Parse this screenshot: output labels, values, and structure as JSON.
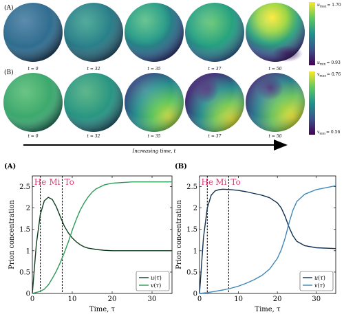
{
  "spheres": {
    "rows": [
      {
        "label": "(A)",
        "times": [
          "t = 0",
          "t = 32",
          "t = 35",
          "t = 37",
          "t = 50"
        ],
        "colorbar": {
          "max_var": "u",
          "max_sub": "max",
          "max_value": "= 1.70",
          "min_var": "u",
          "min_sub": "min",
          "min_value": "= 0.93"
        }
      },
      {
        "label": "(B)",
        "times": [
          "t = 0",
          "t = 32",
          "t = 35",
          "t = 37",
          "t = 50"
        ],
        "colorbar": {
          "max_var": "v",
          "max_sub": "max",
          "max_value": "= 0.76",
          "min_var": "v",
          "min_sub": "min",
          "min_value": "= 0.56"
        }
      }
    ],
    "time_arrow_label": "Increasing time, t"
  },
  "colormap": [
    "#440154",
    "#3b528b",
    "#21918c",
    "#5ec962",
    "#fde725"
  ],
  "chart_data": [
    {
      "type": "line",
      "panel_label": "(A)",
      "xlabel": "Time, τ",
      "ylabel": "Prion concentration",
      "xlim": [
        0,
        35
      ],
      "ylim": [
        0,
        2.75
      ],
      "xticks": [
        0,
        10,
        20,
        30
      ],
      "yticks": [
        0,
        0.5,
        1.0,
        1.5,
        2.0,
        2.5
      ],
      "ytick_labels": [
        "0",
        "0.5",
        "1",
        "1.5",
        "2",
        "2.5"
      ],
      "phase_lines": [
        {
          "label": "He",
          "x": 2
        },
        {
          "label": "Mi",
          "x": 7.5
        },
        {
          "label": "To",
          "x": 7.5
        }
      ],
      "phase_color": "#e0407a",
      "legend": "bottom-right",
      "series": [
        {
          "name": "u(τ)",
          "legend_var": "u",
          "legend_arg": "τ",
          "color": "#0b3d1c",
          "x": [
            0,
            1,
            2,
            3,
            4,
            5,
            6,
            7,
            8,
            9,
            10,
            11,
            12,
            13,
            14,
            16,
            18,
            20,
            25,
            30,
            35
          ],
          "y": [
            0,
            1.15,
            1.85,
            2.17,
            2.25,
            2.2,
            2.03,
            1.8,
            1.58,
            1.42,
            1.3,
            1.21,
            1.14,
            1.09,
            1.06,
            1.03,
            1.01,
            1.0,
            1.0,
            1.0,
            1.0
          ]
        },
        {
          "name": "v(τ)",
          "legend_var": "v",
          "legend_arg": "τ",
          "color": "#2a9a55",
          "x": [
            0,
            2,
            3,
            4,
            5,
            6,
            7,
            8,
            9,
            10,
            11,
            12,
            13,
            14,
            15,
            16,
            18,
            20,
            25,
            30,
            35
          ],
          "y": [
            0,
            0.05,
            0.1,
            0.2,
            0.35,
            0.52,
            0.72,
            0.95,
            1.2,
            1.48,
            1.73,
            1.95,
            2.12,
            2.26,
            2.37,
            2.45,
            2.54,
            2.58,
            2.61,
            2.61,
            2.61
          ]
        }
      ]
    },
    {
      "type": "line",
      "panel_label": "(B)",
      "xlabel": "Time, τ",
      "ylabel": "Prion concentration",
      "xlim": [
        0,
        35
      ],
      "ylim": [
        0,
        2.75
      ],
      "xticks": [
        0,
        10,
        20,
        30
      ],
      "yticks": [
        0,
        0.5,
        1.0,
        1.5,
        2.0,
        2.5
      ],
      "ytick_labels": [
        "0",
        "0.5",
        "1",
        "1.5",
        "2",
        "2.5"
      ],
      "phase_lines": [
        {
          "label": "He",
          "x": 2
        },
        {
          "label": "Mi",
          "x": 7.5
        },
        {
          "label": "To",
          "x": 7.5
        }
      ],
      "phase_color": "#e0407a",
      "legend": "bottom-right",
      "series": [
        {
          "name": "u(τ)",
          "legend_var": "u",
          "legend_arg": "τ",
          "color": "#0e2f4f",
          "x": [
            0,
            1,
            2,
            3,
            4,
            5,
            6,
            8,
            10,
            12,
            14,
            16,
            18,
            20,
            21,
            22,
            23,
            24,
            25,
            27,
            30,
            35
          ],
          "y": [
            0,
            1.3,
            2.0,
            2.3,
            2.4,
            2.43,
            2.44,
            2.43,
            2.41,
            2.38,
            2.34,
            2.3,
            2.24,
            2.12,
            2.0,
            1.8,
            1.55,
            1.35,
            1.22,
            1.12,
            1.07,
            1.05
          ]
        },
        {
          "name": "v(τ)",
          "legend_var": "v",
          "legend_arg": "τ",
          "color": "#3f86b8",
          "x": [
            0,
            2,
            4,
            6,
            8,
            10,
            12,
            14,
            16,
            18,
            20,
            21,
            22,
            23,
            24,
            25,
            27,
            30,
            35
          ],
          "y": [
            0,
            0.02,
            0.05,
            0.08,
            0.12,
            0.17,
            0.24,
            0.32,
            0.42,
            0.57,
            0.82,
            1.02,
            1.3,
            1.65,
            1.95,
            2.15,
            2.32,
            2.43,
            2.52
          ]
        }
      ]
    }
  ]
}
